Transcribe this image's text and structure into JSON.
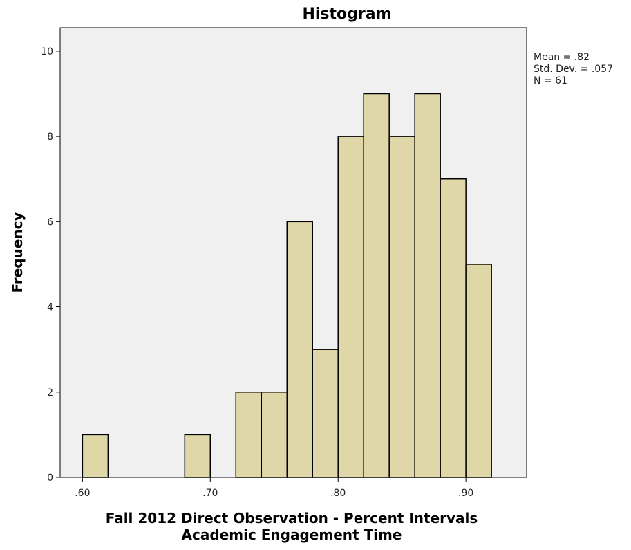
{
  "chart_data": {
    "type": "bar",
    "title": "Histogram",
    "xlabel_lines": [
      "Fall 2012 Direct Observation - Percent Intervals",
      "Academic Engagement Time"
    ],
    "ylabel": "Frequency",
    "bin_width": 0.02,
    "bins": [
      {
        "x0": 0.6,
        "x1": 0.62,
        "count": 1
      },
      {
        "x0": 0.68,
        "x1": 0.7,
        "count": 1
      },
      {
        "x0": 0.72,
        "x1": 0.74,
        "count": 2
      },
      {
        "x0": 0.74,
        "x1": 0.76,
        "count": 2
      },
      {
        "x0": 0.76,
        "x1": 0.78,
        "count": 6
      },
      {
        "x0": 0.78,
        "x1": 0.8,
        "count": 3
      },
      {
        "x0": 0.8,
        "x1": 0.82,
        "count": 8
      },
      {
        "x0": 0.82,
        "x1": 0.84,
        "count": 9
      },
      {
        "x0": 0.84,
        "x1": 0.86,
        "count": 8
      },
      {
        "x0": 0.86,
        "x1": 0.88,
        "count": 9
      },
      {
        "x0": 0.88,
        "x1": 0.9,
        "count": 7
      },
      {
        "x0": 0.9,
        "x1": 0.92,
        "count": 5
      }
    ],
    "xlim": [
      0.5825,
      0.9475
    ],
    "ylim": [
      0,
      10.55
    ],
    "xticks": [
      {
        "value": 0.6,
        "label": ".60"
      },
      {
        "value": 0.7,
        "label": ".70"
      },
      {
        "value": 0.8,
        "label": ".80"
      },
      {
        "value": 0.9,
        "label": ".90"
      }
    ],
    "yticks": [
      {
        "value": 0,
        "label": "0"
      },
      {
        "value": 2,
        "label": "2"
      },
      {
        "value": 4,
        "label": "4"
      },
      {
        "value": 6,
        "label": "6"
      },
      {
        "value": 8,
        "label": "8"
      },
      {
        "value": 10,
        "label": "10"
      }
    ],
    "stats": [
      "Mean = .82",
      "Std. Dev. = .057",
      "N = 61"
    ],
    "grid": false,
    "legend": "none",
    "colors": {
      "bar_fill": "#e0d7a8",
      "bar_stroke": "#000000",
      "plot_background": "#f0f0f0"
    }
  }
}
